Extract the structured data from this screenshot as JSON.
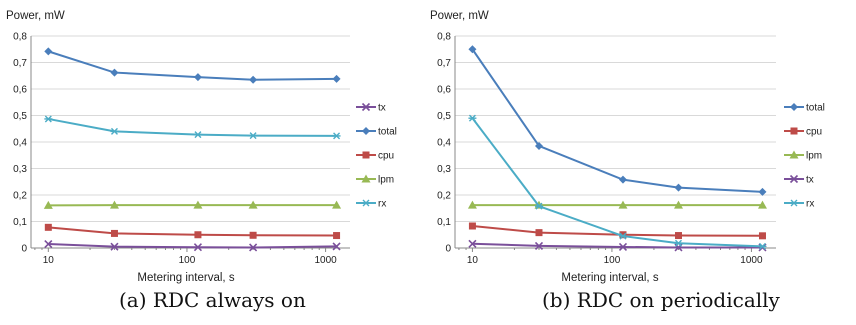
{
  "chart_data": [
    {
      "type": "line",
      "caption": "(a) RDC always on",
      "ylabel": "Power, mW",
      "xlabel": "Metering interval, s",
      "x_scale": "log",
      "x_tick_labels": [
        "10",
        "100",
        "1000"
      ],
      "y_tick_labels": [
        "0",
        "0,1",
        "0,2",
        "0,3",
        "0,4",
        "0,5",
        "0,6",
        "0,7",
        "0,8"
      ],
      "ylim": [
        0,
        0.8
      ],
      "grid": "horizontal",
      "legend_position": "right",
      "x": [
        10,
        30,
        120,
        300,
        1200
      ],
      "series": [
        {
          "name": "tx",
          "color": "#7A4F9A",
          "marker": "x",
          "values": [
            0.015,
            0.005,
            0.003,
            0.002,
            0.006
          ]
        },
        {
          "name": "total",
          "color": "#4A7EBB",
          "marker": "diamond",
          "values": [
            0.742,
            0.662,
            0.645,
            0.635,
            0.638
          ]
        },
        {
          "name": "cpu",
          "color": "#BE4B48",
          "marker": "square",
          "values": [
            0.078,
            0.055,
            0.05,
            0.048,
            0.047
          ]
        },
        {
          "name": "lpm",
          "color": "#98B954",
          "marker": "triangle",
          "values": [
            0.161,
            0.162,
            0.162,
            0.162,
            0.162
          ]
        },
        {
          "name": "rx",
          "color": "#4BACC6",
          "marker": "star",
          "values": [
            0.487,
            0.44,
            0.428,
            0.424,
            0.423
          ]
        }
      ]
    },
    {
      "type": "line",
      "caption": "(b) RDC on periodically",
      "ylabel": "Power, mW",
      "xlabel": "Metering interval, s",
      "x_scale": "log",
      "x_tick_labels": [
        "10",
        "100",
        "1000"
      ],
      "y_tick_labels": [
        "0",
        "0,1",
        "0,2",
        "0,3",
        "0,4",
        "0,5",
        "0,6",
        "0,7",
        "0,8"
      ],
      "ylim": [
        0,
        0.8
      ],
      "grid": "horizontal",
      "legend_position": "right",
      "x": [
        10,
        30,
        120,
        300,
        1200
      ],
      "series": [
        {
          "name": "total",
          "color": "#4A7EBB",
          "marker": "diamond",
          "values": [
            0.75,
            0.385,
            0.258,
            0.228,
            0.212
          ]
        },
        {
          "name": "cpu",
          "color": "#BE4B48",
          "marker": "square",
          "values": [
            0.083,
            0.058,
            0.05,
            0.047,
            0.046
          ]
        },
        {
          "name": "lpm",
          "color": "#98B954",
          "marker": "triangle",
          "values": [
            0.162,
            0.162,
            0.162,
            0.162,
            0.162
          ]
        },
        {
          "name": "tx",
          "color": "#7A4F9A",
          "marker": "x",
          "values": [
            0.016,
            0.008,
            0.004,
            0.002,
            0.002
          ]
        },
        {
          "name": "rx",
          "color": "#4BACC6",
          "marker": "star",
          "values": [
            0.49,
            0.158,
            0.045,
            0.018,
            0.006
          ]
        }
      ]
    }
  ]
}
